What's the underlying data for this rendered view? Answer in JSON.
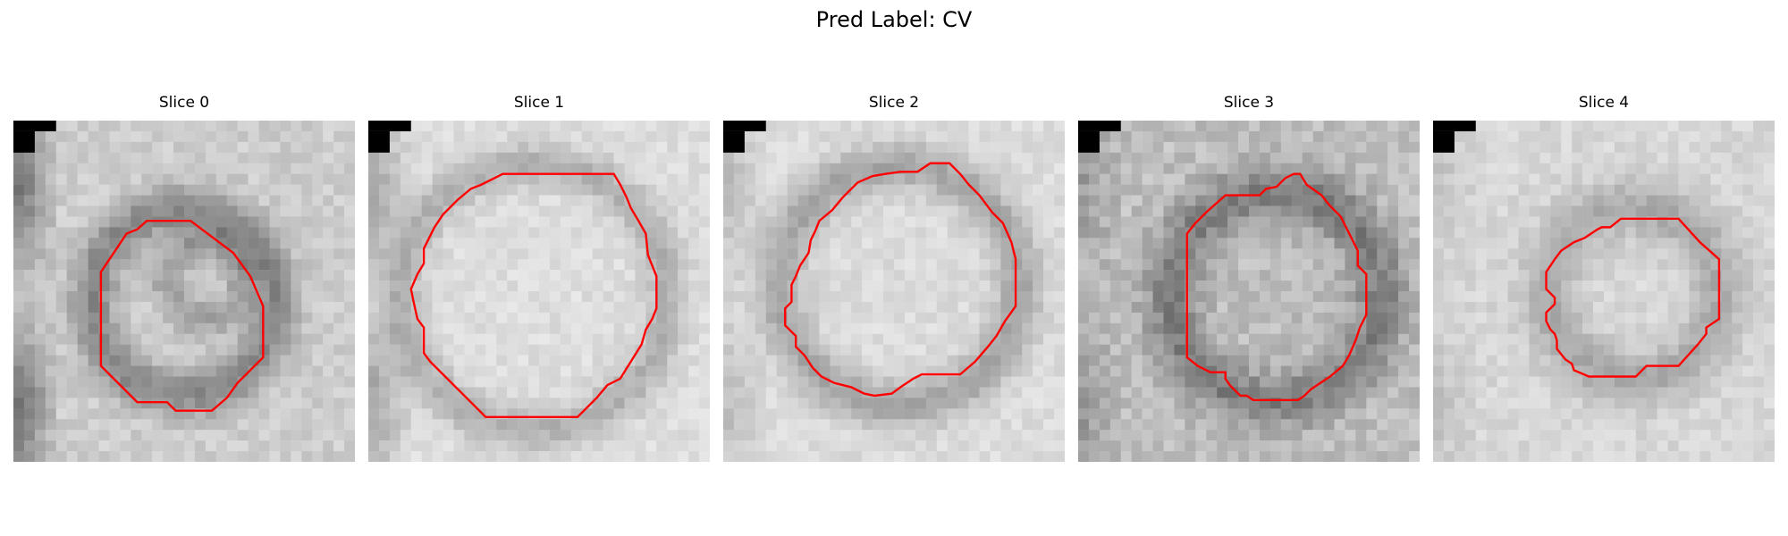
{
  "figure": {
    "title": "Pred Label: CV"
  },
  "panels": [
    {
      "title": "Slice 0"
    },
    {
      "title": "Slice 1"
    },
    {
      "title": "Slice 2"
    },
    {
      "title": "Slice 3"
    },
    {
      "title": "Slice 4"
    }
  ],
  "colors": {
    "contour": "#ff0000",
    "background": "#ffffff",
    "corner_mask": "#000000"
  }
}
